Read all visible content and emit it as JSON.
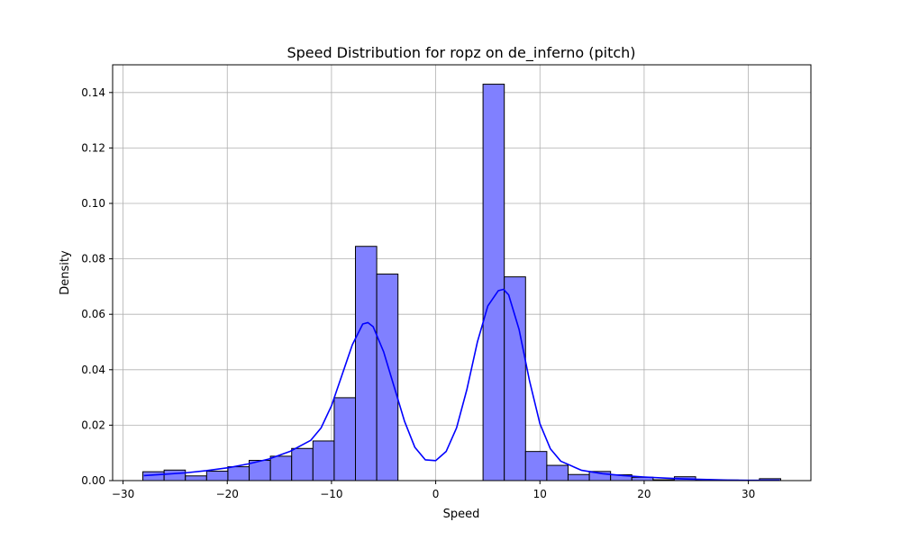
{
  "chart_data": {
    "type": "bar",
    "title": "Speed Distribution for ropz on de_inferno (pitch)",
    "xlabel": "Speed",
    "ylabel": "Density",
    "xlim": [
      -31,
      36
    ],
    "ylim": [
      0,
      0.15
    ],
    "x_ticks": [
      -30,
      -20,
      -10,
      0,
      10,
      20,
      30
    ],
    "y_ticks": [
      0.0,
      0.02,
      0.04,
      0.06,
      0.08,
      0.1,
      0.12,
      0.14
    ],
    "x_tick_labels": [
      "−30",
      "−20",
      "−10",
      "0",
      "10",
      "20",
      "30"
    ],
    "y_tick_labels": [
      "0.00",
      "0.02",
      "0.04",
      "0.06",
      "0.08",
      "0.10",
      "0.12",
      "0.14"
    ],
    "grid": true,
    "bar_color": "#8080ff",
    "bar_edge_color": "#000000",
    "kde_color": "#0000ff",
    "bin_edges": [
      -28.1,
      -26.06,
      -24.02,
      -21.98,
      -19.94,
      -17.9,
      -15.86,
      -13.82,
      -11.78,
      -9.74,
      -7.7,
      -5.66,
      -3.62,
      -1.58,
      0.46,
      2.5,
      4.54,
      6.58,
      8.62,
      10.66,
      12.7,
      14.74,
      16.78,
      18.82,
      20.86,
      22.9,
      24.94,
      26.98,
      29.02,
      31.06,
      33.1
    ],
    "values": [
      0.0032,
      0.0038,
      0.0017,
      0.0034,
      0.005,
      0.0073,
      0.0088,
      0.0116,
      0.0143,
      0.0299,
      0.0845,
      0.0745,
      0,
      0,
      0,
      0,
      0.143,
      0.0735,
      0.0105,
      0.0055,
      0.0022,
      0.0033,
      0.0021,
      0.0012,
      0.0003,
      0.0014,
      0.0003,
      0.0002,
      0.0001,
      0.0007
    ],
    "kde": {
      "x": [
        -28,
        -26,
        -24,
        -22,
        -20,
        -18,
        -16,
        -14,
        -12,
        -11,
        -10,
        -9,
        -8,
        -7,
        -6.5,
        -6,
        -5,
        -4,
        -3,
        -2,
        -1,
        0,
        1,
        2,
        3,
        4,
        5,
        6,
        6.5,
        7,
        8,
        9,
        10,
        11,
        12,
        14,
        16,
        18,
        20,
        22,
        24,
        26,
        28,
        30,
        32,
        33
      ],
      "y": [
        0.0018,
        0.0023,
        0.0028,
        0.0036,
        0.0046,
        0.006,
        0.0078,
        0.0105,
        0.0145,
        0.019,
        0.027,
        0.038,
        0.049,
        0.0565,
        0.057,
        0.0555,
        0.0465,
        0.034,
        0.0215,
        0.012,
        0.0075,
        0.0072,
        0.0105,
        0.019,
        0.033,
        0.05,
        0.063,
        0.0685,
        0.069,
        0.067,
        0.0545,
        0.036,
        0.0205,
        0.0115,
        0.007,
        0.0037,
        0.0025,
        0.0018,
        0.0013,
        0.0009,
        0.0006,
        0.0004,
        0.0002,
        0.0001,
        0.0001,
        0.0001
      ]
    }
  }
}
